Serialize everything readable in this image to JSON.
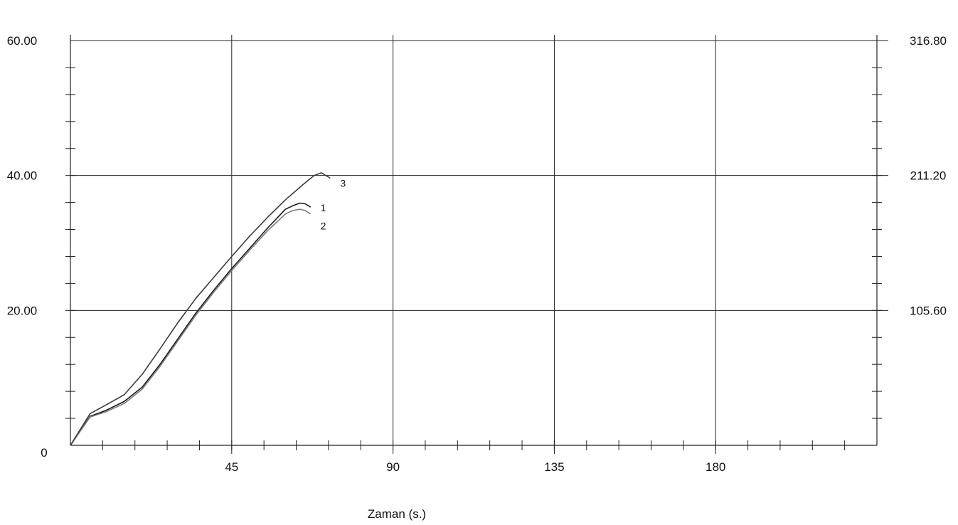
{
  "chart_data": {
    "type": "line",
    "xlabel": "Zaman (s.)",
    "ylabel": "",
    "xlim": [
      0,
      225
    ],
    "ylim": [
      0,
      60
    ],
    "y2lim": [
      0,
      316.8
    ],
    "grid": true,
    "x_tick_labels": [
      {
        "value": 45,
        "label": "45"
      },
      {
        "value": 90,
        "label": "90"
      },
      {
        "value": 135,
        "label": "135"
      },
      {
        "value": 180,
        "label": "180"
      }
    ],
    "y_tick_labels": [
      {
        "value": 0,
        "label": "0"
      },
      {
        "value": 20,
        "label": "20.00"
      },
      {
        "value": 40,
        "label": "40.00"
      },
      {
        "value": 60,
        "label": "60.00"
      }
    ],
    "y2_tick_labels": [
      {
        "value": 105.6,
        "label": "105.60"
      },
      {
        "value": 211.2,
        "label": "211.20"
      },
      {
        "value": 316.8,
        "label": "316.80"
      }
    ],
    "x_minor_step": 9,
    "y_minor_step": 4,
    "series": [
      {
        "name": "1",
        "color": "#1a1a1a",
        "x": [
          0,
          5.5,
          10,
          15,
          20,
          25,
          30,
          35,
          40,
          45,
          50,
          55,
          60,
          62,
          64,
          65.5,
          67
        ],
        "y": [
          0,
          4.3,
          5.2,
          6.5,
          8.6,
          12.0,
          15.8,
          19.6,
          23.0,
          26.2,
          29.2,
          32.2,
          35.0,
          35.5,
          35.9,
          35.8,
          35.3
        ]
      },
      {
        "name": "2",
        "color": "#7a7a7a",
        "x": [
          0,
          5.5,
          10,
          15,
          20,
          25,
          30,
          35,
          40,
          45,
          50,
          55,
          60,
          62,
          64,
          65.5,
          67
        ],
        "y": [
          0,
          4.2,
          5.0,
          6.2,
          8.3,
          11.7,
          15.5,
          19.3,
          22.7,
          25.9,
          28.9,
          31.8,
          34.3,
          34.8,
          35.0,
          34.8,
          34.3
        ]
      },
      {
        "name": "3",
        "color": "#3a3a3a",
        "x": [
          0,
          5.5,
          10,
          15,
          20,
          25,
          30,
          35,
          40,
          45,
          50,
          55,
          60,
          65,
          68,
          70,
          72.5
        ],
        "y": [
          0,
          4.7,
          6.0,
          7.5,
          10.5,
          14.3,
          18.2,
          21.8,
          24.9,
          28.0,
          31.0,
          33.8,
          36.4,
          38.7,
          40.0,
          40.4,
          39.6
        ]
      }
    ]
  }
}
